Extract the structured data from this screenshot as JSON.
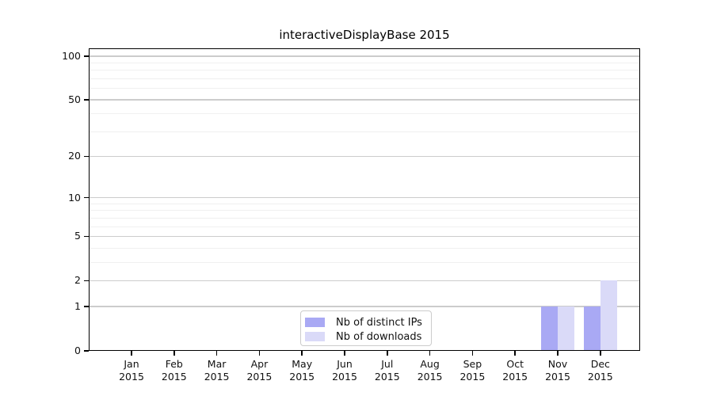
{
  "chart_data": {
    "type": "bar",
    "title": "interactiveDisplayBase 2015",
    "categories": [
      "Jan",
      "Feb",
      "Mar",
      "Apr",
      "May",
      "Jun",
      "Jul",
      "Aug",
      "Sep",
      "Oct",
      "Nov",
      "Dec"
    ],
    "x_tick_year": "2015",
    "series": [
      {
        "name": "Nb of distinct IPs",
        "color": "#a9a9f4",
        "values": [
          0,
          0,
          0,
          0,
          0,
          0,
          0,
          0,
          0,
          0,
          1,
          1
        ]
      },
      {
        "name": "Nb of downloads",
        "color": "#dadaf8",
        "values": [
          0,
          0,
          0,
          0,
          0,
          0,
          0,
          0,
          0,
          0,
          1,
          2
        ]
      }
    ],
    "xlabel": "",
    "ylabel": "",
    "y_scale": "log1p",
    "y_ticks": [
      0,
      1,
      2,
      5,
      10,
      20,
      50,
      100
    ],
    "y_minor_gridlines": [
      3,
      4,
      6,
      7,
      8,
      9,
      30,
      40,
      60,
      70,
      80,
      90
    ],
    "ylim": [
      0,
      113
    ],
    "grid": "horizontal",
    "legend_position": "bottom-center",
    "colors": {
      "major_grid": "#cccccc",
      "minor_grid": "#f0f0f0",
      "axis": "#000000",
      "text": "#111111",
      "background": "#ffffff"
    }
  }
}
